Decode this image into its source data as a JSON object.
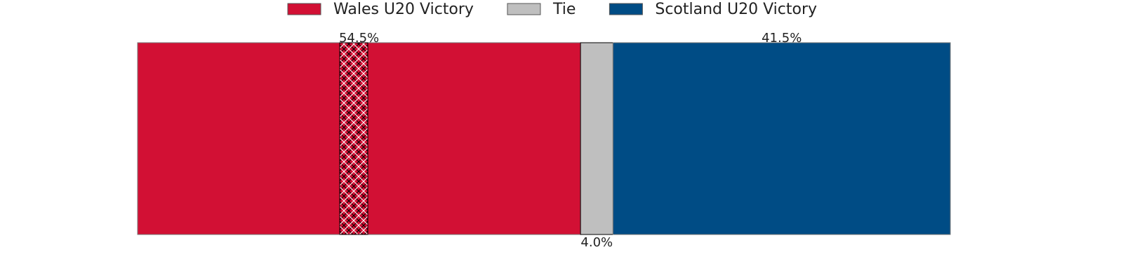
{
  "chart_data": {
    "type": "stacked-bar",
    "orientation": "horizontal",
    "xlim": [
      0,
      100
    ],
    "series": [
      {
        "name": "Wales U20 Victory",
        "color": "#d21034",
        "values": [
          54.5
        ],
        "value_labels": [
          "54.5%"
        ]
      },
      {
        "name": "Tie",
        "color": "#bfbfbf",
        "values": [
          4.0
        ],
        "value_labels": [
          "4.0%"
        ]
      },
      {
        "name": "Scotland U20 Victory",
        "color": "#004c85",
        "values": [
          41.5
        ],
        "value_labels": [
          "41.5%"
        ]
      }
    ],
    "legend": "top"
  }
}
